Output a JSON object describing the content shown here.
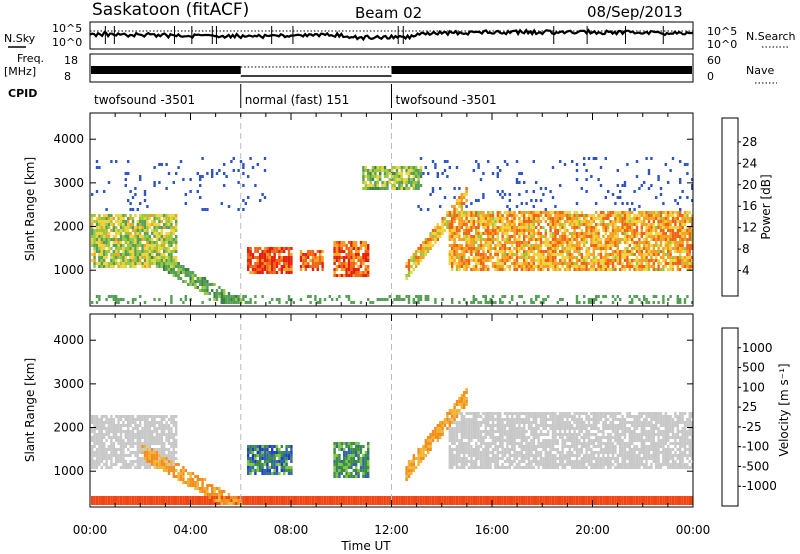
{
  "header": {
    "station": "Saskatoon (fitACF)",
    "beam": "Beam 02",
    "date": "08/Sep/2013"
  },
  "strips": {
    "nsky_label": "N.Sky",
    "nsearch_label": "N.Search",
    "freq_label_1": "Freq.",
    "freq_label_2": "[MHz]",
    "nave_label": "Nave",
    "cpid_label": "CPID",
    "noise_ticks_left": [
      "10^5",
      "10^0"
    ],
    "noise_ticks_right": [
      "10^5",
      "10^0"
    ],
    "freq_ticks": [
      "18",
      "8"
    ],
    "nave_ticks": [
      "60",
      "0"
    ]
  },
  "cpid_segments": [
    {
      "label": "twofsound -3501",
      "start_h": 0,
      "end_h": 6
    },
    {
      "label": "normal (fast) 151",
      "start_h": 6,
      "end_h": 12
    },
    {
      "label": "twofsound -3501",
      "start_h": 12,
      "end_h": 24
    }
  ],
  "colors": {
    "power_scale": [
      "#0a1ee6",
      "#2d55c8",
      "#3c8246",
      "#55a055",
      "#96c83c",
      "#f0d23c",
      "#f5a01e",
      "#f06414",
      "#e61e0a"
    ],
    "velocity_scale": [
      "#e60a0a",
      "#f04614",
      "#f58c1e",
      "#f0b432",
      "#c8c8c8",
      "#c8c8c8",
      "#78c83c",
      "#3c8c46",
      "#3264aa",
      "#1e3cc8"
    ]
  },
  "chart_data": [
    {
      "type": "heatmap",
      "name": "Power",
      "ylabel": "Slant Range [km]",
      "xlabel": "Time UT",
      "x_ticks": [
        "00:00",
        "04:00",
        "08:00",
        "12:00",
        "16:00",
        "20:00",
        "00:00"
      ],
      "y_ticks": [
        "1000",
        "2000",
        "3000",
        "4000"
      ],
      "xlim_hours": [
        0,
        24
      ],
      "ylim_km": [
        180,
        4600
      ],
      "colorbar_label": "Power [dB]",
      "colorbar_ticks": [
        "4",
        "8",
        "12",
        "16",
        "20",
        "24",
        "28"
      ],
      "colorbar_range": [
        0,
        30
      ],
      "features": [
        {
          "desc": "scatter band",
          "t_start": 0,
          "t_end": 3.4,
          "range_km": [
            1100,
            2300
          ],
          "power_db": 16
        },
        {
          "desc": "strong echoes",
          "t_start": 6.2,
          "t_end": 8.0,
          "range_km": [
            950,
            1550
          ],
          "power_db": 28
        },
        {
          "desc": "strong echoes",
          "t_start": 8.3,
          "t_end": 9.3,
          "range_km": [
            1000,
            1500
          ],
          "power_db": 27
        },
        {
          "desc": "strong echoes",
          "t_start": 9.6,
          "t_end": 11.1,
          "range_km": [
            900,
            1700
          ],
          "power_db": 27
        },
        {
          "desc": "far echoes",
          "t_start": 10.8,
          "t_end": 13.2,
          "range_km": [
            2900,
            3400
          ],
          "power_db": 14
        },
        {
          "desc": "scatter band",
          "t_start": 14.2,
          "t_end": 24,
          "range_km": [
            1000,
            2400
          ],
          "power_db": 22
        }
      ]
    },
    {
      "type": "heatmap",
      "name": "Velocity",
      "ylabel": "Slant Range [km]",
      "xlabel": "Time UT",
      "x_ticks": [
        "00:00",
        "04:00",
        "08:00",
        "12:00",
        "16:00",
        "20:00",
        "00:00"
      ],
      "y_ticks": [
        "1000",
        "2000",
        "3000",
        "4000"
      ],
      "xlim_hours": [
        0,
        24
      ],
      "ylim_km": [
        180,
        4600
      ],
      "colorbar_label": "Velocity [m s⁻¹]",
      "colorbar_ticks": [
        "1000",
        "500",
        "100",
        "25",
        "-25",
        "-100",
        "-500",
        "-1000"
      ],
      "features": [
        {
          "desc": "ground scatter",
          "t_start": 0,
          "t_end": 3.4,
          "range_km": [
            1100,
            2300
          ],
          "velocity_ms": 0
        },
        {
          "desc": "ionospheric scatter",
          "t_start": 6.2,
          "t_end": 8.0,
          "range_km": [
            950,
            1600
          ],
          "velocity_ms": 300
        },
        {
          "desc": "ionospheric scatter",
          "t_start": 9.6,
          "t_end": 11.1,
          "range_km": [
            900,
            1700
          ],
          "velocity_ms": 200
        },
        {
          "desc": "ground scatter",
          "t_start": 14.2,
          "t_end": 24,
          "range_km": [
            1100,
            2400
          ],
          "velocity_ms": 0
        }
      ]
    }
  ]
}
